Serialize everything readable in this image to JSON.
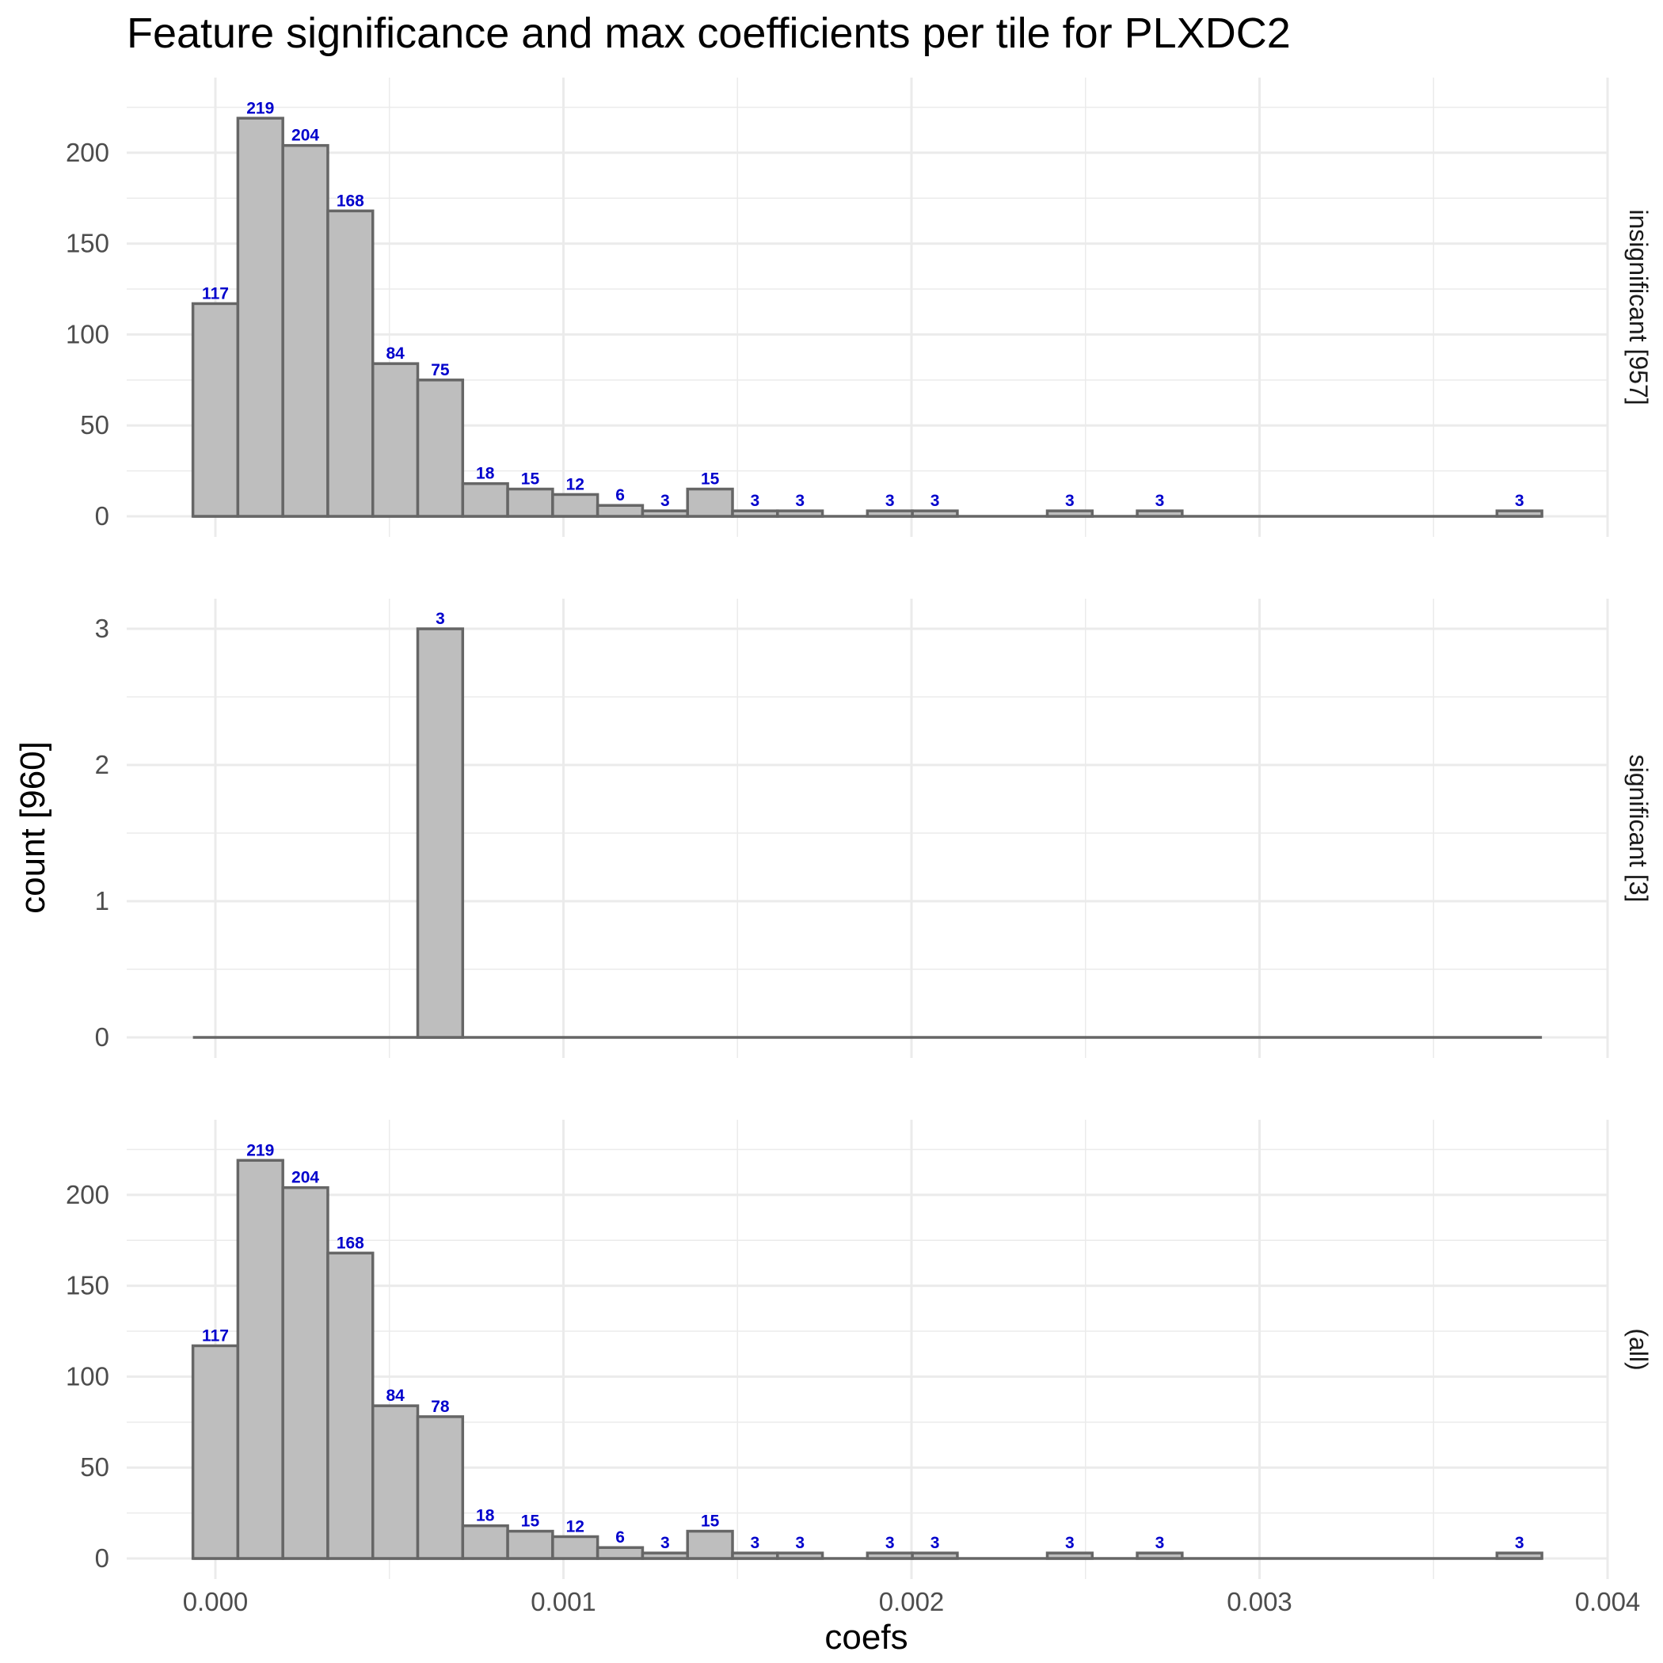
{
  "chart_data": {
    "type": "bar",
    "title": "Feature significance and max coefficients per tile for PLXDC2",
    "xlabel": "coefs",
    "ylabel": "count [960]",
    "xlim": [
      -0.00026,
      0.004
    ],
    "x_ticks": [
      0.0,
      0.001,
      0.002,
      0.003,
      0.004
    ],
    "x_tick_labels": [
      "0.000",
      "0.001",
      "0.002",
      "0.003",
      "0.004"
    ],
    "bin_width": 0.0001292,
    "bin_first_left": -6.46e-05,
    "grid": true,
    "panels": [
      {
        "strip_label": "insignificant [957]",
        "ylim": [
          0,
          230
        ],
        "y_ticks": [
          0,
          50,
          100,
          150,
          200
        ],
        "y_tick_labels": [
          "0",
          "50",
          "100",
          "150",
          "200"
        ],
        "counts": [
          117,
          219,
          204,
          168,
          84,
          75,
          18,
          15,
          12,
          6,
          3,
          15,
          3,
          3,
          0,
          3,
          3,
          0,
          0,
          3,
          0,
          3,
          0,
          0,
          0,
          0,
          0,
          0,
          0,
          3
        ]
      },
      {
        "strip_label": "significant [3]",
        "ylim": [
          0,
          3.07
        ],
        "y_ticks": [
          0,
          1,
          2,
          3
        ],
        "y_tick_labels": [
          "0",
          "1",
          "2",
          "3"
        ],
        "counts": [
          0,
          0,
          0,
          0,
          0,
          3,
          0,
          0,
          0,
          0,
          0,
          0,
          0,
          0,
          0,
          0,
          0,
          0,
          0,
          0,
          0,
          0,
          0,
          0,
          0,
          0,
          0,
          0,
          0,
          0
        ]
      },
      {
        "strip_label": "(all)",
        "ylim": [
          0,
          230
        ],
        "y_ticks": [
          0,
          50,
          100,
          150,
          200
        ],
        "y_tick_labels": [
          "0",
          "50",
          "100",
          "150",
          "200"
        ],
        "counts": [
          117,
          219,
          204,
          168,
          84,
          78,
          18,
          15,
          12,
          6,
          3,
          15,
          3,
          3,
          0,
          3,
          3,
          0,
          0,
          3,
          0,
          3,
          0,
          0,
          0,
          0,
          0,
          0,
          0,
          3
        ]
      }
    ]
  }
}
